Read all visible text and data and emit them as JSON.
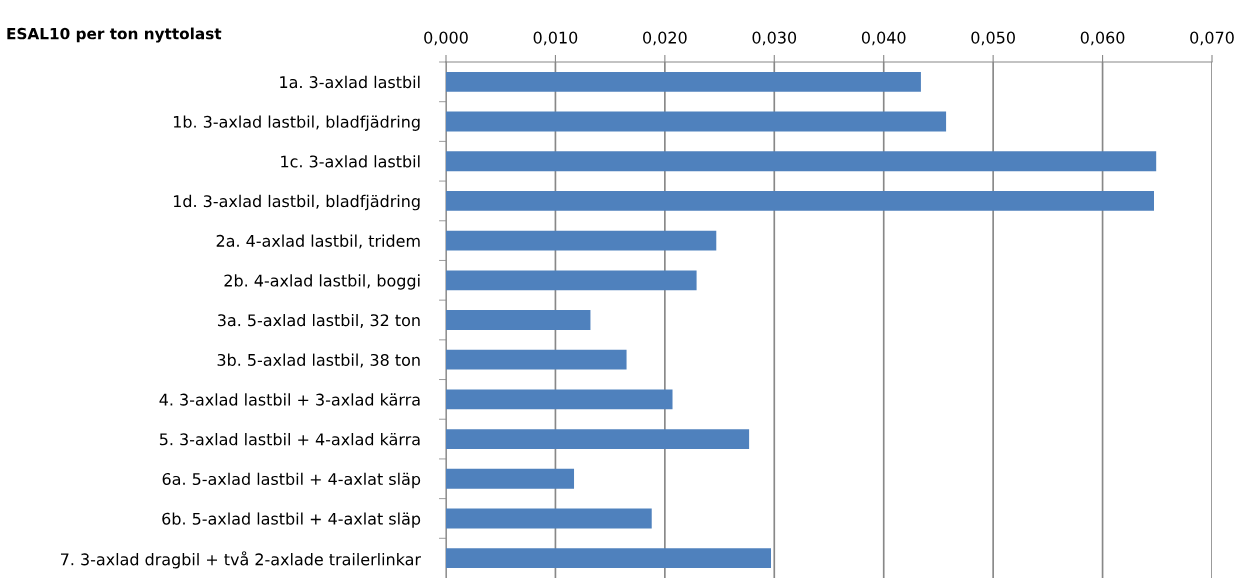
{
  "chart_data": {
    "type": "bar",
    "orientation": "horizontal",
    "title": "ESAL10 per ton nyttolast",
    "categories": [
      "1a. 3-axlad lastbil",
      "1b. 3-axlad lastbil, bladfjädring",
      "1c. 3-axlad lastbil",
      "1d. 3-axlad lastbil, bladfjädring",
      "2a. 4-axlad lastbil, tridem",
      "2b. 4-axlad lastbil, boggi",
      "3a. 5-axlad lastbil, 32 ton",
      "3b. 5-axlad lastbil, 38 ton",
      "4. 3-axlad lastbil + 3-axlad kärra",
      "5. 3-axlad lastbil + 4-axlad kärra",
      "6a. 5-axlad lastbil + 4-axlat släp",
      "6b. 5-axlad lastbil + 4-axlat släp",
      "7. 3-axlad dragbil + två 2-axlade trailerlinkar"
    ],
    "values": [
      0.0434,
      0.0457,
      0.0649,
      0.0647,
      0.0247,
      0.0229,
      0.0132,
      0.0165,
      0.0207,
      0.0277,
      0.0117,
      0.0188,
      0.0297
    ],
    "color": "#4f81bd",
    "xlim": [
      0,
      0.07
    ],
    "xticks": [
      {
        "value": 0,
        "label": "0,000"
      },
      {
        "value": 0.01,
        "label": "0,010"
      },
      {
        "value": 0.02,
        "label": "0,020"
      },
      {
        "value": 0.03,
        "label": "0,030"
      },
      {
        "value": 0.04,
        "label": "0,040"
      },
      {
        "value": 0.05,
        "label": "0,050"
      },
      {
        "value": 0.06,
        "label": "0,060"
      },
      {
        "value": 0.07,
        "label": "0,070"
      }
    ],
    "grid": "x"
  }
}
